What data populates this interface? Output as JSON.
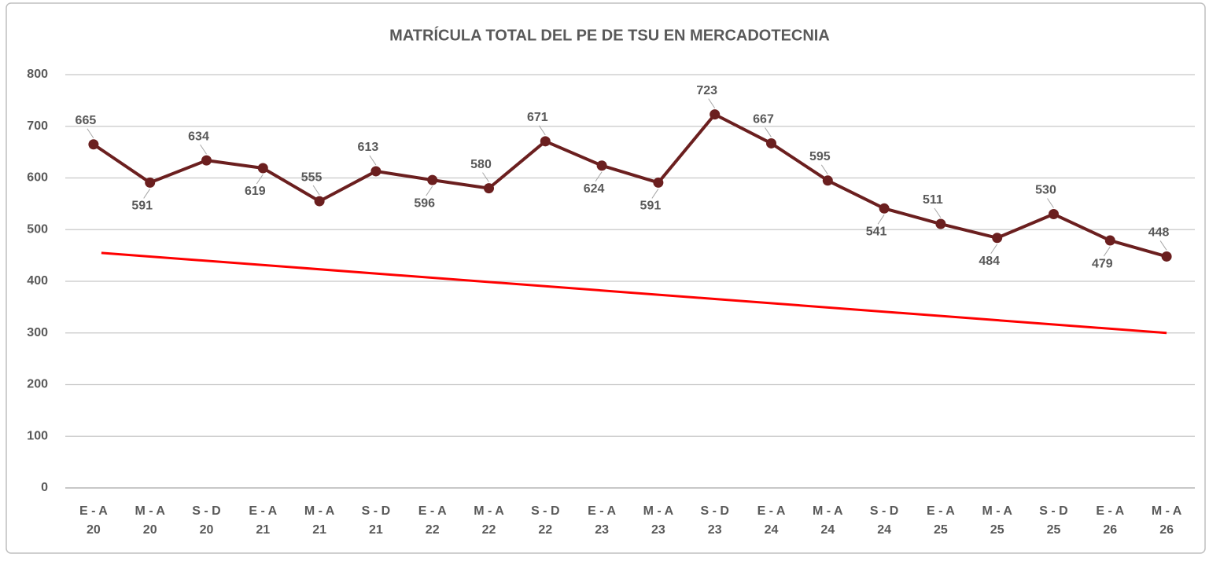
{
  "chart_data": {
    "type": "line",
    "title": "MATRÍCULA TOTAL DEL PE DE TSU EN MERCADOTECNIA",
    "categories": [
      [
        "E - A",
        "20"
      ],
      [
        "M - A",
        "20"
      ],
      [
        "S - D",
        "20"
      ],
      [
        "E - A",
        "21"
      ],
      [
        "M - A",
        "21"
      ],
      [
        "S - D",
        "21"
      ],
      [
        "E - A",
        "22"
      ],
      [
        "M - A",
        "22"
      ],
      [
        "S - D",
        "22"
      ],
      [
        "E - A",
        "23"
      ],
      [
        "M - A",
        "23"
      ],
      [
        "S - D",
        "23"
      ],
      [
        "E - A",
        "24"
      ],
      [
        "M - A",
        "24"
      ],
      [
        "S - D",
        "24"
      ],
      [
        "E - A",
        "25"
      ],
      [
        "M - A",
        "25"
      ],
      [
        "S - D",
        "25"
      ],
      [
        "E - A",
        "26"
      ],
      [
        "M - A",
        "26"
      ]
    ],
    "values": [
      665,
      591,
      634,
      619,
      555,
      613,
      596,
      580,
      671,
      624,
      591,
      723,
      667,
      595,
      541,
      511,
      484,
      530,
      479,
      448
    ],
    "label_position": [
      "above",
      "below",
      "above",
      "below",
      "above",
      "above",
      "below",
      "above",
      "above",
      "below",
      "below",
      "above",
      "above",
      "above",
      "below",
      "above",
      "below",
      "above",
      "below",
      "above"
    ],
    "color": "#6b1f1f",
    "trendline": {
      "color": "#ff0000",
      "values": [
        455,
        300
      ]
    },
    "ylim": [
      0,
      800
    ],
    "yticks": [
      0,
      100,
      200,
      300,
      400,
      500,
      600,
      700,
      800
    ],
    "grid": true
  }
}
